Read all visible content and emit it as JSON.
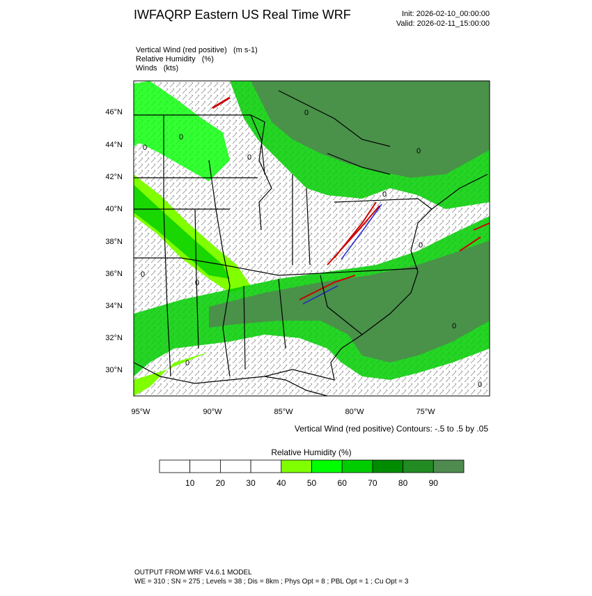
{
  "header": {
    "title": "IWFAQRP Eastern US Real Time WRF",
    "init": "Init: 2026-02-10_00:00:00",
    "valid": "Valid: 2026-02-11_15:00:00"
  },
  "fields": [
    "Vertical Wind (red positive)   (m s-1)",
    "Relative Humidity   (%)",
    "Winds   (kts)"
  ],
  "map": {
    "lat_labels": [
      "46°N",
      "44°N",
      "42°N",
      "40°N",
      "38°N",
      "36°N",
      "34°N",
      "32°N",
      "30°N"
    ],
    "lon_labels": [
      "95°W",
      "90°W",
      "85°W",
      "80°W",
      "75°W"
    ],
    "contour_note": "Vertical Wind (red positive) Contours: -.5 to .5 by .05",
    "contour_labels": [
      "0",
      "0",
      "0",
      "0",
      "0",
      "0",
      "0",
      "0",
      "0",
      "0",
      "0",
      "0"
    ]
  },
  "colorbar": {
    "title": "Relative Humidity  (%)",
    "range": [
      0,
      100
    ],
    "ticks": [
      10,
      20,
      30,
      40,
      50,
      60,
      70,
      80,
      90
    ],
    "colors": [
      "#ffffff",
      "#ffffff",
      "#ffffff",
      "#ffffff",
      "#7fff00",
      "#00ff00",
      "#00cd00",
      "#008b00",
      "#228b22",
      "#4f8a4f"
    ]
  },
  "footer": {
    "line1": "OUTPUT FROM WRF V4.6.1 MODEL",
    "line2": "WE = 310 ; SN = 275 ; Levels = 38 ; Dis = 8km ; Phys Opt = 8 ; PBL Opt = 1 ; Cu Opt = 3"
  }
}
